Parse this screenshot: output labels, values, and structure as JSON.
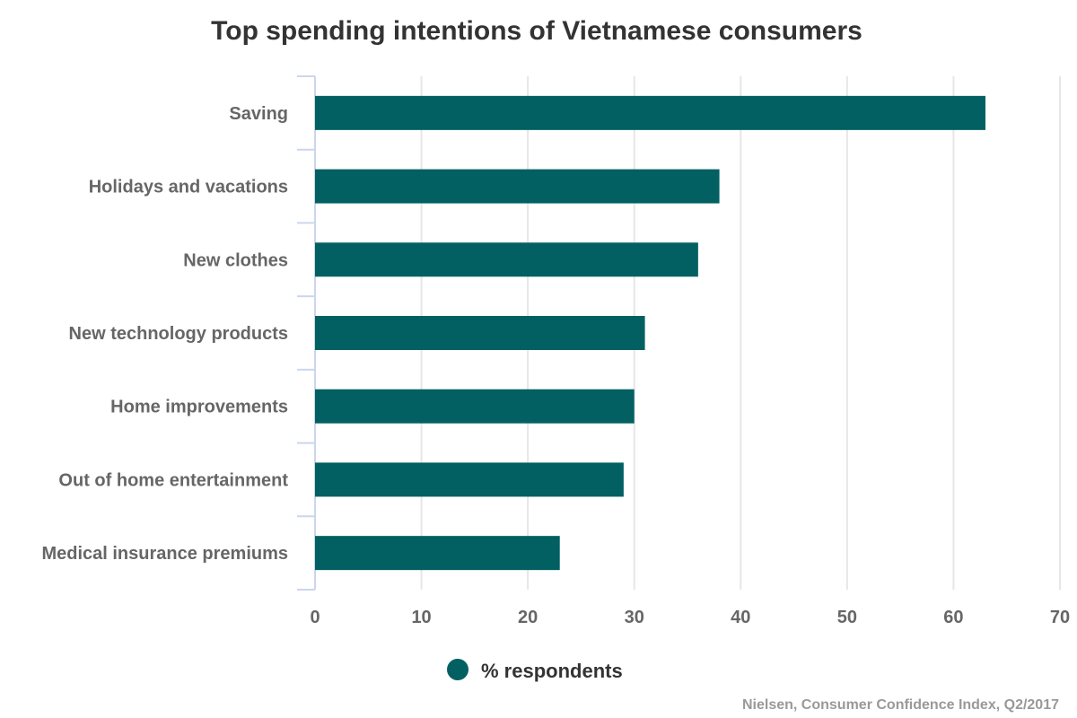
{
  "chart_data": {
    "type": "bar",
    "orientation": "horizontal",
    "title": "Top spending intentions of Vietnamese consumers",
    "categories": [
      "Saving",
      "Holidays and vacations",
      "New clothes",
      "New technology products",
      "Home improvements",
      "Out of home entertainment",
      "Medical insurance premiums"
    ],
    "series": [
      {
        "name": "% respondents",
        "values": [
          63,
          38,
          36,
          31,
          30,
          29,
          23
        ],
        "color": "#036062"
      }
    ],
    "xlim": [
      0,
      70
    ],
    "x_ticks": [
      0,
      10,
      20,
      30,
      40,
      50,
      60,
      70
    ],
    "grid": "vertical",
    "legend_position": "bottom-center",
    "source": "Nielsen, Consumer Confidence Index, Q2/2017"
  }
}
